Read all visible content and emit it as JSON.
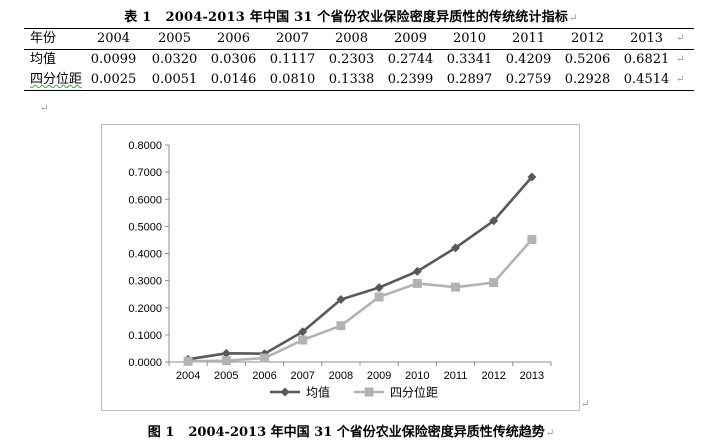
{
  "table": {
    "label": "表 1",
    "title": "2004-2013 年中国 31 个省份农业保险密度异质性的传统统计指标",
    "header_label": "年份",
    "years": [
      "2004",
      "2005",
      "2006",
      "2007",
      "2008",
      "2009",
      "2010",
      "2011",
      "2012",
      "2013"
    ],
    "rows": [
      {
        "label": "均值",
        "values": [
          "0.0099",
          "0.0320",
          "0.0306",
          "0.1117",
          "0.2303",
          "0.2744",
          "0.3341",
          "0.4209",
          "0.5206",
          "0.6821"
        ]
      },
      {
        "label": "四分位距",
        "values": [
          "0.0025",
          "0.0051",
          "0.0146",
          "0.0810",
          "0.1338",
          "0.2399",
          "0.2897",
          "0.2759",
          "0.2928",
          "0.4514"
        ]
      }
    ]
  },
  "paragraph_mark": "↵",
  "chart_data": {
    "type": "line",
    "title": "",
    "xlabel": "",
    "ylabel": "",
    "categories": [
      "2004",
      "2005",
      "2006",
      "2007",
      "2008",
      "2009",
      "2010",
      "2011",
      "2012",
      "2013"
    ],
    "ylim": [
      0,
      0.8
    ],
    "yticks": [
      "0.0000",
      "0.1000",
      "0.2000",
      "0.3000",
      "0.4000",
      "0.5000",
      "0.6000",
      "0.7000",
      "0.8000"
    ],
    "grid": false,
    "legend_position": "bottom",
    "series": [
      {
        "name": "均值",
        "marker": "diamond",
        "color": "#595959",
        "values": [
          0.0099,
          0.032,
          0.0306,
          0.1117,
          0.2303,
          0.2744,
          0.3341,
          0.4209,
          0.5206,
          0.6821
        ]
      },
      {
        "name": "四分位距",
        "marker": "square",
        "color": "#b3b3b3",
        "values": [
          0.0025,
          0.0051,
          0.0146,
          0.081,
          0.1338,
          0.2399,
          0.2897,
          0.2759,
          0.2928,
          0.4514
        ]
      }
    ]
  },
  "figure": {
    "label": "图 1",
    "title": "2004-2013 年中国 31 个省份农业保险密度异质性传统趋势"
  }
}
